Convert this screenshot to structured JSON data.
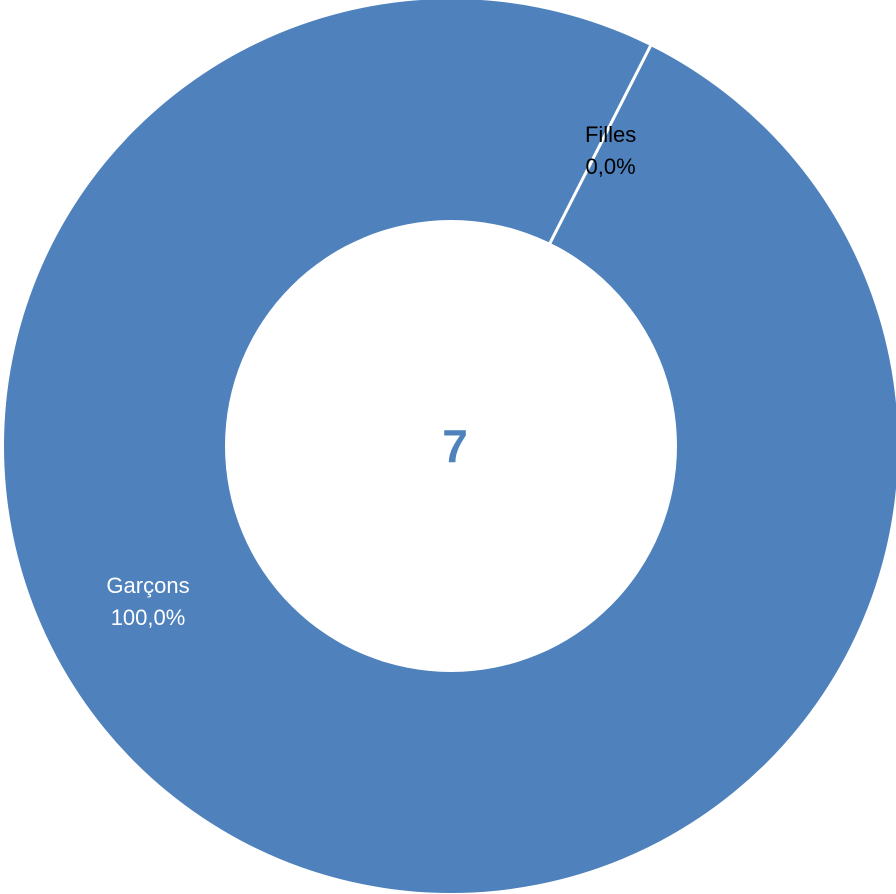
{
  "chart_data": {
    "type": "pie",
    "variant": "donut",
    "center_value": "7",
    "slices": [
      {
        "name": "Filles",
        "value": 0.0,
        "percent_label": "0,0%",
        "color": "#4f81bd",
        "label_color": "#000000"
      },
      {
        "name": "Garçons",
        "value": 100.0,
        "percent_label": "100,0%",
        "color": "#4f81bd",
        "label_color": "#ffffff"
      }
    ],
    "start_angle_deg": 64,
    "separator_color": "#ffffff",
    "center_text_color": "#4f81bd"
  }
}
